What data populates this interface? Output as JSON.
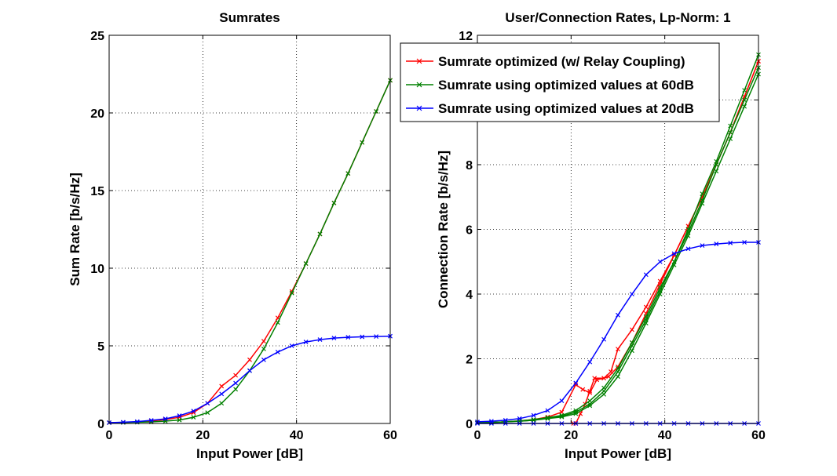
{
  "chart_data": [
    {
      "type": "line",
      "title": "Sumrates",
      "xlabel": "Input Power [dB]",
      "ylabel": "Sum Rate [b/s/Hz]",
      "xlim": [
        0,
        60
      ],
      "ylim": [
        0,
        25
      ],
      "xticks": [
        0,
        20,
        40,
        60
      ],
      "yticks": [
        0,
        5,
        10,
        15,
        20,
        25
      ],
      "grid": true,
      "series": [
        {
          "color": "#ff0000",
          "marker": "x",
          "x": [
            0,
            3,
            6,
            9,
            12,
            15,
            18,
            21,
            24,
            27,
            30,
            33,
            36,
            39,
            42,
            45,
            48,
            51,
            54,
            57,
            60
          ],
          "y": [
            0.05,
            0.07,
            0.1,
            0.15,
            0.25,
            0.4,
            0.7,
            1.3,
            2.4,
            3.1,
            4.1,
            5.3,
            6.8,
            8.5,
            10.3,
            12.2,
            14.2,
            16.1,
            18.1,
            20.1,
            22.1
          ]
        },
        {
          "color": "#008000",
          "marker": "x",
          "x": [
            0,
            3,
            6,
            9,
            12,
            15,
            18,
            21,
            24,
            27,
            30,
            33,
            36,
            39,
            42,
            45,
            48,
            51,
            54,
            57,
            60
          ],
          "y": [
            0.05,
            0.06,
            0.08,
            0.1,
            0.15,
            0.22,
            0.4,
            0.7,
            1.3,
            2.2,
            3.4,
            4.8,
            6.5,
            8.4,
            10.3,
            12.2,
            14.2,
            16.1,
            18.1,
            20.1,
            22.1
          ]
        },
        {
          "color": "#0000ff",
          "marker": "x",
          "x": [
            0,
            3,
            6,
            9,
            12,
            15,
            18,
            21,
            24,
            27,
            30,
            33,
            36,
            39,
            42,
            45,
            48,
            51,
            54,
            57,
            60
          ],
          "y": [
            0.05,
            0.08,
            0.12,
            0.2,
            0.3,
            0.5,
            0.8,
            1.3,
            1.9,
            2.6,
            3.4,
            4.1,
            4.6,
            5.0,
            5.25,
            5.4,
            5.5,
            5.55,
            5.58,
            5.6,
            5.62
          ]
        }
      ]
    },
    {
      "type": "line",
      "title": "User/Connection Rates, Lp-Norm: 1",
      "xlabel": "Input Power [dB]",
      "ylabel": "Connection Rate [b/s/Hz]",
      "xlim": [
        0,
        60
      ],
      "ylim": [
        0,
        12
      ],
      "xticks": [
        0,
        20,
        40,
        60
      ],
      "yticks": [
        0,
        2,
        4,
        6,
        8,
        10,
        12
      ],
      "grid": true,
      "legend": {
        "placement": "top-left",
        "entries": [
          {
            "label": "Sumrate optimized (w/ Relay Coupling)",
            "color": "#ff0000"
          },
          {
            "label": "Sumrate using optimized values at 60dB",
            "color": "#008000"
          },
          {
            "label": "Sumrate using optimized values at 20dB",
            "color": "#0000ff"
          }
        ]
      },
      "series": [
        {
          "color": "#ff0000",
          "marker": "x",
          "x": [
            0,
            3,
            6,
            9,
            12,
            15,
            18,
            21,
            22.5,
            24,
            25.5,
            27,
            28.5,
            30,
            33,
            36,
            39,
            42,
            45,
            48,
            51,
            54,
            57,
            60
          ],
          "y": [
            0.02,
            0.03,
            0.05,
            0.08,
            0.12,
            0.2,
            0.35,
            1.2,
            1.05,
            0.95,
            1.35,
            1.4,
            1.6,
            2.3,
            2.9,
            3.6,
            4.4,
            5.2,
            6.1,
            7.0,
            8.0,
            9.0,
            10.1,
            11.2
          ]
        },
        {
          "color": "#ff0000",
          "marker": "x",
          "x": [
            20.5,
            21,
            22,
            23,
            24,
            25,
            27,
            28,
            30,
            33,
            36,
            39,
            42,
            45,
            48,
            51,
            54,
            57,
            60
          ],
          "y": [
            0.0,
            0.0,
            0.3,
            0.6,
            1.0,
            1.4,
            1.4,
            1.45,
            1.75,
            2.5,
            3.4,
            4.3,
            5.2,
            6.1,
            7.0,
            8.0,
            9.0,
            10.1,
            11.2
          ]
        },
        {
          "color": "#008000",
          "marker": "x",
          "x": [
            0,
            3,
            6,
            9,
            12,
            15,
            18,
            21,
            24,
            27,
            30,
            33,
            36,
            39,
            42,
            45,
            48,
            51,
            54,
            57,
            60
          ],
          "y": [
            0.02,
            0.03,
            0.05,
            0.08,
            0.12,
            0.18,
            0.25,
            0.4,
            0.7,
            1.1,
            1.7,
            2.5,
            3.3,
            4.2,
            5.0,
            6.0,
            7.1,
            8.1,
            9.2,
            10.3,
            11.4
          ]
        },
        {
          "color": "#008000",
          "marker": "x",
          "x": [
            0,
            3,
            6,
            9,
            12,
            15,
            18,
            21,
            24,
            27,
            30,
            33,
            36,
            39,
            42,
            45,
            48,
            51,
            54,
            57,
            60
          ],
          "y": [
            0.02,
            0.03,
            0.05,
            0.07,
            0.1,
            0.16,
            0.22,
            0.35,
            0.6,
            1.0,
            1.6,
            2.4,
            3.2,
            4.1,
            5.0,
            5.9,
            6.9,
            8.0,
            9.0,
            10.0,
            11.0
          ]
        },
        {
          "color": "#008000",
          "marker": "x",
          "x": [
            0,
            3,
            6,
            9,
            12,
            15,
            18,
            21,
            24,
            27,
            30,
            33,
            36,
            39,
            42,
            45,
            48,
            51,
            54,
            57,
            60
          ],
          "y": [
            0.02,
            0.03,
            0.05,
            0.07,
            0.1,
            0.15,
            0.2,
            0.3,
            0.55,
            0.9,
            1.45,
            2.25,
            3.1,
            4.0,
            4.9,
            5.8,
            6.8,
            7.8,
            8.8,
            9.8,
            10.8
          ]
        },
        {
          "color": "#0000ff",
          "marker": "x",
          "x": [
            0,
            3,
            6,
            9,
            12,
            15,
            18,
            21,
            24,
            27,
            30,
            33,
            36,
            39,
            42,
            45,
            48,
            51,
            54,
            57,
            60
          ],
          "y": [
            0.05,
            0.07,
            0.1,
            0.15,
            0.25,
            0.4,
            0.7,
            1.25,
            1.9,
            2.6,
            3.35,
            4.0,
            4.6,
            5.0,
            5.25,
            5.4,
            5.5,
            5.55,
            5.58,
            5.6,
            5.6
          ]
        },
        {
          "color": "#0000ff",
          "marker": "x",
          "x": [
            0,
            3,
            6,
            9,
            12,
            15,
            18,
            21,
            24,
            27,
            30,
            33,
            36,
            39,
            42,
            45,
            48,
            51,
            54,
            57,
            60
          ],
          "y": [
            0,
            0,
            0,
            0,
            0,
            0,
            0,
            0,
            0,
            0,
            0,
            0,
            0,
            0,
            0,
            0,
            0,
            0,
            0,
            0,
            0
          ]
        }
      ]
    }
  ]
}
